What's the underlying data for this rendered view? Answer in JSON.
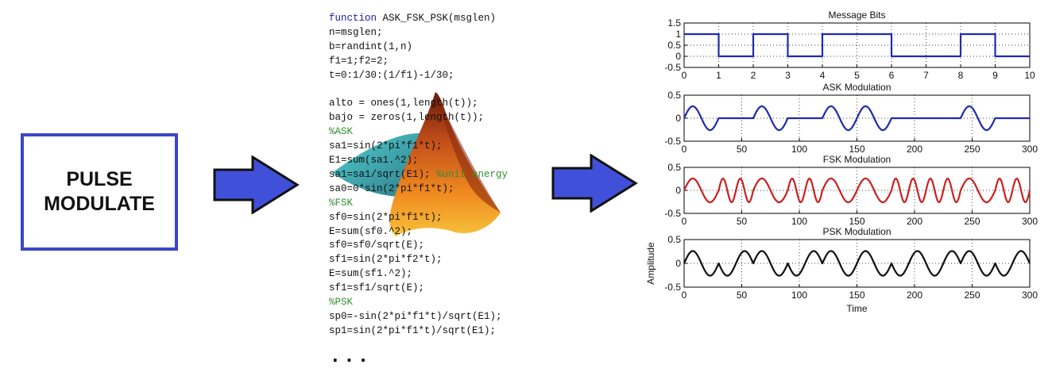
{
  "box": {
    "line1": "PULSE",
    "line2": "MODULATE"
  },
  "code": {
    "lines": [
      {
        "t": "function ASK_FSK_PSK(msglen)",
        "kw": "function"
      },
      {
        "t": "n=msglen;"
      },
      {
        "t": "b=randint(1,n)"
      },
      {
        "t": "f1=1;f2=2;"
      },
      {
        "t": "t=0:1/30:(1/f1)-1/30;"
      },
      {
        "t": ""
      },
      {
        "t": "alto = ones(1,length(t));"
      },
      {
        "t": "bajo = zeros(1,length(t));"
      },
      {
        "t": "%ASK",
        "comment": true
      },
      {
        "t": "sa1=sin(2*pi*f1*t);"
      },
      {
        "t": "E1=sum(sa1.^2);"
      },
      {
        "t": "sa1=sa1/sqrt(E1); %unit energy",
        "comment_part": "%unit energy"
      },
      {
        "t": "sa0=0*sin(2*pi*f1*t);"
      },
      {
        "t": "%FSK",
        "comment": true
      },
      {
        "t": "sf0=sin(2*pi*f1*t);"
      },
      {
        "t": "E=sum(sf0.^2);"
      },
      {
        "t": "sf0=sf0/sqrt(E);"
      },
      {
        "t": "sf1=sin(2*pi*f2*t);"
      },
      {
        "t": "E=sum(sf1.^2);"
      },
      {
        "t": "sf1=sf1/sqrt(E);"
      },
      {
        "t": "%PSK",
        "comment": true
      },
      {
        "t": "sp0=-sin(2*pi*f1*t)/sqrt(E1);"
      },
      {
        "t": "sp1=sin(2*pi*f1*t)/sqrt(E1);"
      }
    ],
    "ellipsis": "..."
  },
  "colors": {
    "box_border": "#3b46c8",
    "arrow_fill": "#4150d8",
    "bits": "#1f2bb0",
    "ask": "#1f2bb0",
    "fsk": "#cc2020",
    "psk": "#111111"
  },
  "chart_data": [
    {
      "type": "line",
      "title": "Message Bits",
      "xlabel": "",
      "ylabel": "",
      "xlim": [
        0,
        10
      ],
      "ylim": [
        -0.5,
        1.5
      ],
      "xticks": [
        "0",
        "1",
        "2",
        "3",
        "4",
        "5",
        "6",
        "7",
        "8",
        "9",
        "10"
      ],
      "yticks": [
        "-0.5",
        "0",
        "0.5",
        "1",
        "1.5"
      ],
      "bits": [
        1,
        0,
        1,
        0,
        1,
        1,
        0,
        0,
        1,
        0
      ],
      "grid": true
    },
    {
      "type": "line",
      "title": "ASK Modulation",
      "xlabel": "",
      "ylabel": "",
      "xlim": [
        0,
        300
      ],
      "ylim": [
        -0.5,
        0.5
      ],
      "xticks": [
        "0",
        "50",
        "100",
        "150",
        "200",
        "250",
        "300"
      ],
      "yticks": [
        "-0.5",
        "0",
        "0.5"
      ],
      "bits": [
        1,
        0,
        1,
        0,
        1,
        1,
        0,
        0,
        1,
        0
      ],
      "samples_per_bit": 30,
      "amplitude": 0.26,
      "grid": true
    },
    {
      "type": "line",
      "title": "FSK Modulation",
      "xlabel": "",
      "ylabel": "",
      "xlim": [
        0,
        300
      ],
      "ylim": [
        -0.5,
        0.5
      ],
      "xticks": [
        "0",
        "50",
        "100",
        "150",
        "200",
        "250",
        "300"
      ],
      "yticks": [
        "-0.5",
        "0",
        "0.5"
      ],
      "bits": [
        1,
        0,
        1,
        0,
        1,
        1,
        0,
        0,
        1,
        0
      ],
      "samples_per_bit": 30,
      "amplitude": 0.26,
      "grid": true
    },
    {
      "type": "line",
      "title": "PSK Modulation",
      "xlabel": "Time",
      "ylabel": "Amplitude",
      "xlim": [
        0,
        300
      ],
      "ylim": [
        -0.5,
        0.5
      ],
      "xticks": [
        "0",
        "50",
        "100",
        "150",
        "200",
        "250",
        "300"
      ],
      "yticks": [
        "-0.5",
        "0",
        "0.5"
      ],
      "bits": [
        1,
        0,
        1,
        0,
        1,
        1,
        0,
        0,
        1,
        0
      ],
      "samples_per_bit": 30,
      "amplitude": 0.26,
      "grid": true
    }
  ]
}
